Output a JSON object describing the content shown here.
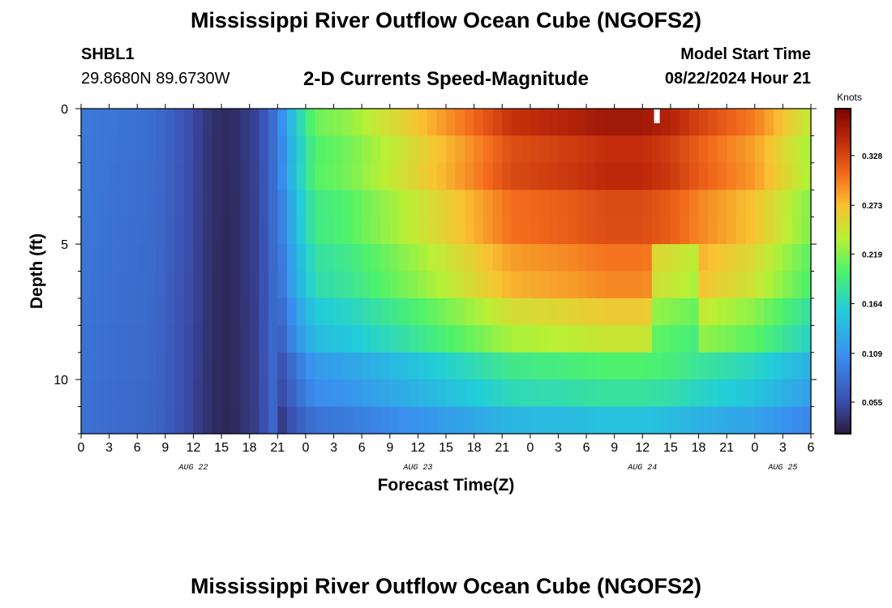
{
  "header": {
    "title": "Mississippi River Outflow Ocean Cube (NGOFS2)",
    "station_id": "SHBL1",
    "coordinates": "29.8680N  89.6730W",
    "subtitle": "2-D Currents Speed-Magnitude",
    "model_start_label": "Model Start Time",
    "model_start_value": "08/22/2024 Hour 21"
  },
  "footer": {
    "repeat_title": "Mississippi River Outflow Ocean Cube (NGOFS2)"
  },
  "chart_data": {
    "type": "heatmap",
    "xlabel": "Forecast Time(Z)",
    "ylabel": "Depth (ft)",
    "x_range_hours": [
      0,
      78
    ],
    "x_tick_labels": [
      "0",
      "3",
      "6",
      "9",
      "12",
      "15",
      "18",
      "21",
      "0",
      "3",
      "6",
      "9",
      "12",
      "15",
      "18",
      "21",
      "0",
      "3",
      "6",
      "9",
      "12",
      "15",
      "18",
      "21",
      "0",
      "3",
      "6"
    ],
    "date_labels": [
      {
        "hour": 12,
        "label": "AUG 22"
      },
      {
        "hour": 36,
        "label": "AUG 23"
      },
      {
        "hour": 60,
        "label": "AUG 24"
      },
      {
        "hour": 75,
        "label": "AUG 25"
      }
    ],
    "y_range_ft": [
      0,
      12
    ],
    "y_tick_labels": [
      "0",
      "5",
      "10"
    ],
    "y_tick_values": [
      0,
      5,
      10
    ],
    "depth_levels_ft": [
      0.5,
      1.5,
      2.5,
      3.5,
      4.5,
      5.5,
      6.5,
      7.5,
      8.5,
      9.5,
      10.5,
      11.5
    ],
    "colorbar": {
      "unit": "Knots",
      "range": [
        0.02,
        0.38
      ],
      "tick_values": [
        0.055,
        0.109,
        0.164,
        0.219,
        0.273,
        0.328
      ],
      "tick_labels": [
        "0.055",
        "0.109",
        "0.164",
        "0.219",
        "0.273",
        "0.328"
      ]
    },
    "time_profile": {
      "hours": [
        0,
        8,
        11,
        14,
        16,
        19,
        21,
        23,
        25,
        28,
        36,
        42,
        46,
        52,
        56,
        60,
        63,
        66,
        68,
        72,
        75,
        78
      ],
      "top_speed": [
        0.09,
        0.08,
        0.06,
        0.035,
        0.03,
        0.05,
        0.09,
        0.16,
        0.21,
        0.22,
        0.27,
        0.31,
        0.34,
        0.35,
        0.36,
        0.36,
        0.35,
        0.33,
        0.32,
        0.3,
        0.27,
        0.24
      ]
    },
    "depth_factors": [
      1.0,
      0.98,
      0.96,
      0.93,
      0.9,
      0.87,
      0.82,
      0.76,
      0.68,
      0.57,
      0.5,
      0.42
    ],
    "mid_dip_hours": [
      61,
      66
    ],
    "data_gap": {
      "hour": 61.5,
      "depth_ft": 0.2
    }
  }
}
